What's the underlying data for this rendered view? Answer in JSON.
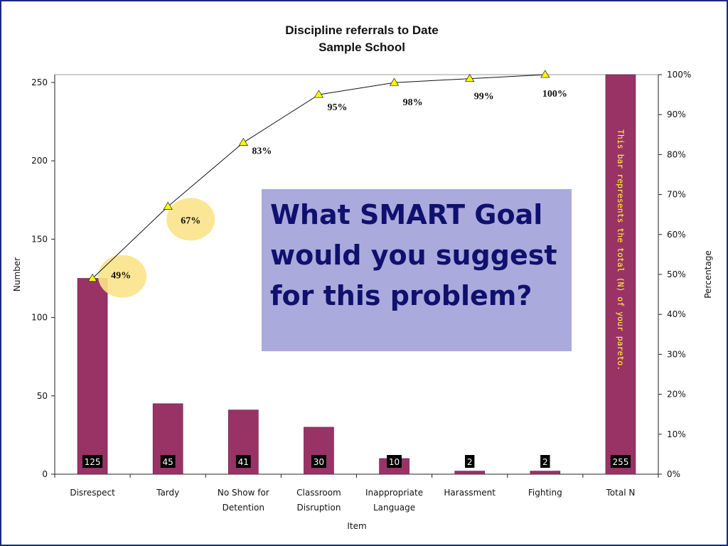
{
  "callout": {
    "text": "What SMART Goal would you suggest for this problem?"
  },
  "chart_data": {
    "type": "bar",
    "title": "Discipline referrals to Date",
    "subtitle": "Sample School",
    "xlabel": "Item",
    "ylabel": "Number",
    "y2label": "Percentage",
    "ylim": [
      0,
      250
    ],
    "y_ticks": [
      0,
      50,
      100,
      150,
      200,
      250
    ],
    "y2lim": [
      0,
      100
    ],
    "y2_ticks": [
      "0%",
      "10%",
      "20%",
      "30%",
      "40%",
      "50%",
      "60%",
      "70%",
      "80%",
      "90%",
      "100%"
    ],
    "categories": [
      [
        "Disrespect"
      ],
      [
        "Tardy"
      ],
      [
        "No Show for",
        "Detention"
      ],
      [
        "Classroom",
        "Disruption"
      ],
      [
        "Inappropriate",
        "Language"
      ],
      [
        "Harassment"
      ],
      [
        "Fighting"
      ],
      [
        "Total N"
      ]
    ],
    "values": [
      125,
      45,
      41,
      30,
      10,
      2,
      2,
      255
    ],
    "value_labels": [
      "125",
      "45",
      "41",
      "30",
      "10",
      "2",
      "2",
      "255"
    ],
    "cumulative_percent": [
      49,
      67,
      83,
      95,
      98,
      99,
      100
    ],
    "cumulative_labels": [
      "49%",
      "67%",
      "83%",
      "95%",
      "98%",
      "99%",
      "100%"
    ],
    "highlighted_percent_labels": [
      "49%",
      "67%"
    ],
    "total_bar_note": "This bar represents the total (N) of your pareto.",
    "grid": false,
    "legend": "none",
    "colors": {
      "bar": "#993366",
      "marker": "#ffff00",
      "highlight": "#fbe38a",
      "callout_bg": "#aaaadd",
      "callout_text": "#10106e",
      "note": "#ffff33"
    }
  }
}
